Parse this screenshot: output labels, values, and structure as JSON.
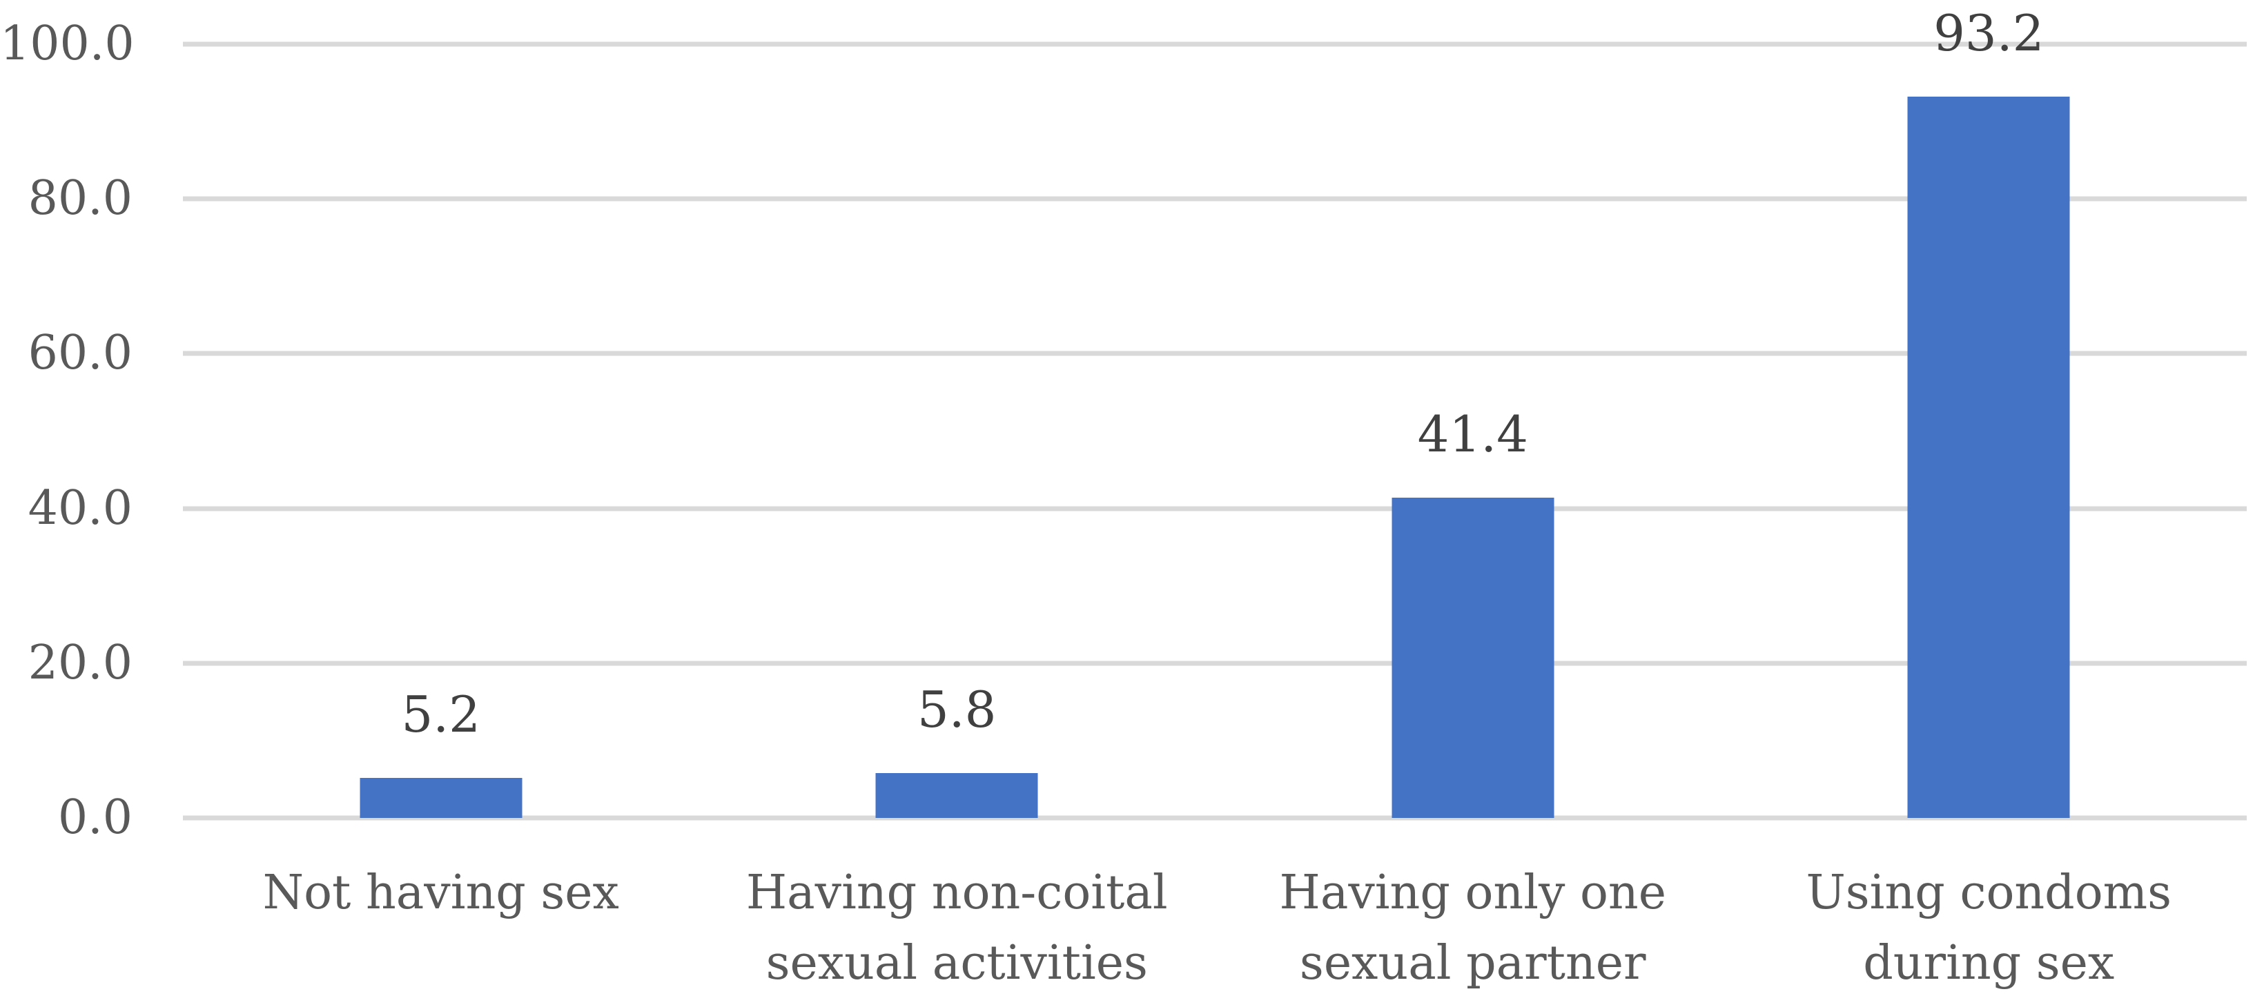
{
  "chart_data": {
    "type": "bar",
    "categories": [
      "Not having sex",
      "Having non-coital sexual activities",
      "Having only one sexual partner",
      "Using condoms during sex"
    ],
    "category_label_lines": [
      [
        "Not having sex"
      ],
      [
        "Having non-coital",
        "sexual activities"
      ],
      [
        "Having only one",
        "sexual partner"
      ],
      [
        "Using condoms",
        "during sex"
      ]
    ],
    "values": [
      5.2,
      5.8,
      41.4,
      93.2
    ],
    "data_labels": [
      "5.2",
      "5.8",
      "41.4",
      "93.2"
    ],
    "title": "",
    "xlabel": "",
    "ylabel": "",
    "ylim": [
      0,
      100
    ],
    "yticks": [
      {
        "value": 0,
        "label": "0.0"
      },
      {
        "value": 20,
        "label": "20.0"
      },
      {
        "value": 40,
        "label": "40.0"
      },
      {
        "value": 60,
        "label": "60.0"
      },
      {
        "value": 80,
        "label": "80.0"
      },
      {
        "value": 100,
        "label": "100.0"
      }
    ],
    "grid": true,
    "legend": false,
    "colors": {
      "bar_fill": "#4472C4",
      "gridline": "#D9D9D9",
      "axis_text": "#595959",
      "data_label_text": "#404040",
      "background": "#FFFFFF"
    }
  }
}
